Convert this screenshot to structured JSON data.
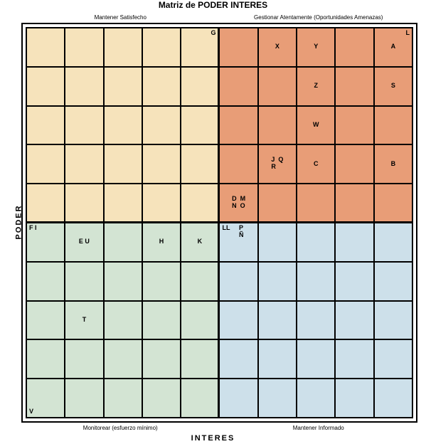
{
  "title": "Matriz de PODER INTERES",
  "axis": {
    "y": "PODER",
    "x": "INTERES"
  },
  "quadrant_labels": {
    "tl": "Mantener Satisfecho",
    "tr": "Gestionar Atentamente (Oportunidades Amenazas)",
    "bl": "Monitorear (esfuerzo mínimo)",
    "br": "Mantener Informado"
  },
  "style": {
    "grid_rows": 10,
    "grid_cols": 10,
    "split_row": 5,
    "split_col": 5,
    "colors": {
      "tl": "#f6e3bb",
      "tr": "#e89d77",
      "bl": "#d3e4d3",
      "br": "#cde0ea",
      "border": "#000000",
      "background": "#ffffff"
    },
    "font": {
      "label_size": 9,
      "title_size": 12,
      "axis_size": 11,
      "small_size": 8,
      "weight": "bold"
    }
  },
  "corners": {
    "G": {
      "row": 0,
      "col": 4,
      "pos": "tr"
    },
    "L": {
      "row": 0,
      "col": 9,
      "pos": "tr"
    },
    "F_I": {
      "row": 5,
      "col": 0,
      "pos": "tl",
      "text": "F  I"
    },
    "LL": {
      "row": 5,
      "col": 5,
      "pos": "tl",
      "text": "LL"
    },
    "V": {
      "row": 9,
      "col": 0,
      "pos": "bl"
    }
  },
  "points": {
    "X": {
      "row": 0,
      "col": 6
    },
    "Y": {
      "row": 0,
      "col": 7
    },
    "A": {
      "row": 0,
      "col": 9
    },
    "Z": {
      "row": 1,
      "col": 7
    },
    "S": {
      "row": 1,
      "col": 9
    },
    "W": {
      "row": 2,
      "col": 7
    },
    "JQR": {
      "row": 3,
      "col": 6,
      "text": "J  Q\nR"
    },
    "C": {
      "row": 3,
      "col": 7
    },
    "B": {
      "row": 3,
      "col": 9
    },
    "DMNO": {
      "row": 4,
      "col": 5,
      "text": "D  M\nN  O"
    },
    "EU": {
      "row": 5,
      "col": 1,
      "text": "E  U"
    },
    "H": {
      "row": 5,
      "col": 3
    },
    "K": {
      "row": 5,
      "col": 4
    },
    "PÑ": {
      "row": 5,
      "col": 5,
      "text": "     P\n     Ñ",
      "pos": "tl2"
    },
    "T": {
      "row": 7,
      "col": 1
    }
  }
}
